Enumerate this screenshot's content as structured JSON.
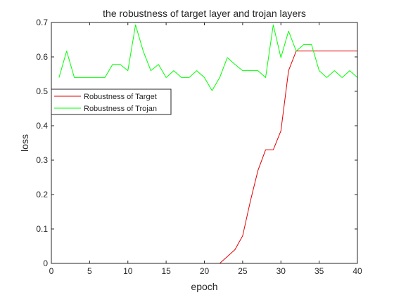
{
  "chart_data": {
    "type": "line",
    "title": "the robustness of target layer and trojan layers",
    "xlabel": "epoch",
    "ylabel": "loss",
    "xlim": [
      0,
      40
    ],
    "ylim": [
      0,
      0.7
    ],
    "xticks": [
      0,
      5,
      10,
      15,
      20,
      25,
      30,
      35,
      40
    ],
    "xtick_labels": [
      "0",
      "5",
      "10",
      "15",
      "20",
      "25",
      "30",
      "35",
      "40"
    ],
    "yticks": [
      0,
      0.1,
      0.2,
      0.3,
      0.4,
      0.5,
      0.6,
      0.7
    ],
    "ytick_labels": [
      "0",
      "0.1",
      "0.2",
      "0.3",
      "0.4",
      "0.5",
      "0.6",
      "0.7"
    ],
    "grid": false,
    "legend_position": "mid-left",
    "x": [
      1,
      2,
      3,
      4,
      5,
      6,
      7,
      8,
      9,
      10,
      11,
      12,
      13,
      14,
      15,
      16,
      17,
      18,
      19,
      20,
      21,
      22,
      23,
      24,
      25,
      26,
      27,
      28,
      29,
      30,
      31,
      32,
      33,
      34,
      35,
      36,
      37,
      38,
      39,
      40
    ],
    "series": [
      {
        "name": "Robustness of Target",
        "color": "#e00000",
        "values": [
          0,
          0,
          0,
          0,
          0,
          0,
          0,
          0,
          0,
          0,
          0,
          0,
          0,
          0,
          0,
          0,
          0,
          0,
          0,
          0,
          0,
          0,
          0.02,
          0.04,
          0.08,
          0.18,
          0.27,
          0.33,
          0.33,
          0.385,
          0.56,
          0.617,
          0.617,
          0.617,
          0.617,
          0.617,
          0.617,
          0.617,
          0.617,
          0.617
        ]
      },
      {
        "name": "Robustness of Trojan",
        "color": "#00ff00",
        "values": [
          0.54,
          0.617,
          0.54,
          0.54,
          0.54,
          0.54,
          0.54,
          0.578,
          0.578,
          0.56,
          0.693,
          0.617,
          0.56,
          0.578,
          0.54,
          0.56,
          0.54,
          0.54,
          0.56,
          0.54,
          0.502,
          0.54,
          0.598,
          0.578,
          0.56,
          0.56,
          0.56,
          0.54,
          0.693,
          0.598,
          0.675,
          0.617,
          0.636,
          0.636,
          0.56,
          0.54,
          0.56,
          0.54,
          0.56,
          0.54
        ]
      }
    ]
  }
}
